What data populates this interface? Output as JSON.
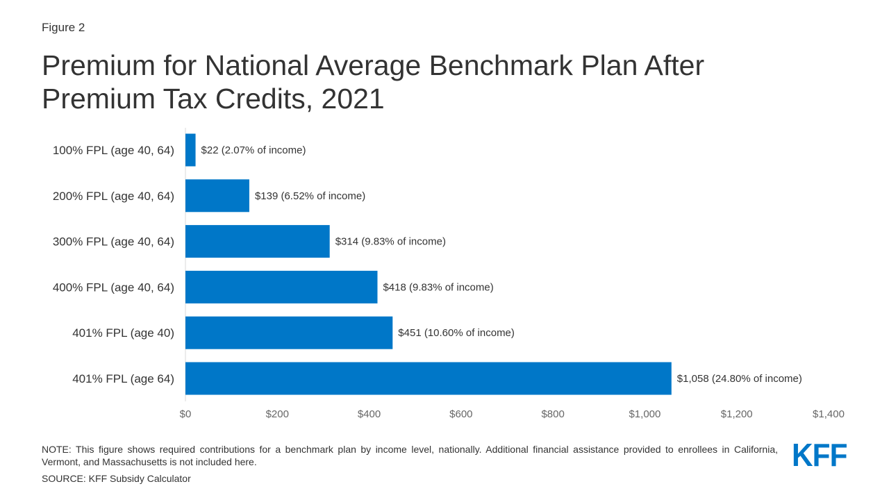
{
  "figure_label": "Figure 2",
  "note": "NOTE: This figure shows required contributions for a benchmark plan by income level, nationally. Additional financial assistance provided to enrollees in California, Vermont, and Massachusetts is not included here.",
  "source": "SOURCE: KFF Subsidy Calculator",
  "logo_text": "KFF",
  "colors": {
    "bar": "#0077c8",
    "text": "#333333",
    "tick_text": "#666666",
    "axis_line": "#d9d9d9",
    "logo": "#0077c8"
  },
  "chart_data": {
    "type": "bar",
    "orientation": "horizontal",
    "title": "Premium for National Average Benchmark Plan After Premium Tax Credits, 2021",
    "xlabel": "",
    "ylabel": "",
    "categories": [
      "100% FPL (age 40, 64)",
      "200% FPL (age 40, 64)",
      "300% FPL (age 40, 64)",
      "400% FPL (age 40, 64)",
      "401% FPL (age 40)",
      "401% FPL (age 64)"
    ],
    "values": [
      22,
      139,
      314,
      418,
      451,
      1058
    ],
    "data_labels": [
      "$22 (2.07% of income)",
      "$139 (6.52% of income)",
      "$314 (9.83% of income)",
      "$418 (9.83% of income)",
      "$451 (10.60% of income)",
      "$1,058 (24.80% of income)"
    ],
    "xlim": [
      0,
      1400
    ],
    "x_ticks": [
      0,
      200,
      400,
      600,
      800,
      1000,
      1200,
      1400
    ],
    "x_tick_labels": [
      "$0",
      "$200",
      "$400",
      "$600",
      "$800",
      "$1,000",
      "$1,200",
      "$1,400"
    ],
    "grid": false,
    "legend": "none"
  }
}
